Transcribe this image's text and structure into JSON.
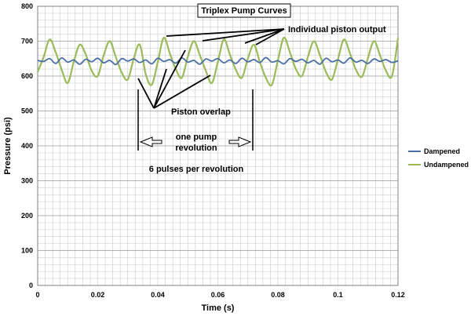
{
  "chart_data": {
    "type": "line",
    "title": "Triplex Pump Curves",
    "xlabel": "Time (s)",
    "ylabel": "Pressure (psi)",
    "xlim": [
      0,
      0.12
    ],
    "ylim": [
      0,
      800
    ],
    "x_ticks": [
      "0",
      "0.02",
      "0.04",
      "0.06",
      "0.08",
      "0.1",
      "0.12"
    ],
    "y_ticks": [
      "0",
      "100",
      "200",
      "300",
      "400",
      "500",
      "600",
      "700",
      "800"
    ],
    "grid": true,
    "legend_position": "right",
    "series": [
      {
        "name": "Dampened",
        "color": "#4a6fa5",
        "x": [
          0,
          0.002,
          0.004,
          0.006,
          0.008,
          0.01,
          0.012,
          0.014,
          0.016,
          0.018,
          0.02,
          0.022,
          0.024,
          0.026,
          0.028,
          0.03,
          0.032,
          0.034,
          0.036,
          0.038,
          0.04,
          0.042,
          0.044,
          0.046,
          0.048,
          0.05,
          0.052,
          0.054,
          0.056,
          0.058,
          0.06,
          0.062,
          0.064,
          0.066,
          0.068,
          0.07,
          0.072,
          0.074,
          0.076,
          0.078,
          0.08,
          0.082,
          0.084,
          0.086,
          0.088,
          0.09,
          0.092,
          0.094,
          0.096,
          0.098,
          0.1,
          0.102,
          0.104,
          0.106,
          0.108,
          0.11,
          0.112,
          0.114,
          0.116,
          0.118,
          0.12
        ],
        "values": [
          645,
          642,
          650,
          636,
          652,
          640,
          646,
          634,
          648,
          641,
          651,
          638,
          645,
          633,
          650,
          643,
          649,
          639,
          646,
          635,
          651,
          642,
          647,
          637,
          652,
          640,
          645,
          634,
          649,
          643,
          650,
          638,
          646,
          636,
          651,
          641,
          647,
          639,
          653,
          640,
          644,
          635,
          650,
          642,
          648,
          638,
          645,
          634,
          651,
          641,
          646,
          637,
          652,
          640,
          645,
          636,
          649,
          642,
          647,
          639,
          644
        ]
      },
      {
        "name": "Undampened",
        "color": "#9bbb59",
        "x": [
          0,
          0.002,
          0.004,
          0.006,
          0.008,
          0.01,
          0.012,
          0.014,
          0.016,
          0.018,
          0.02,
          0.022,
          0.024,
          0.026,
          0.028,
          0.03,
          0.032,
          0.034,
          0.036,
          0.038,
          0.04,
          0.042,
          0.044,
          0.046,
          0.048,
          0.05,
          0.052,
          0.054,
          0.056,
          0.058,
          0.06,
          0.062,
          0.064,
          0.066,
          0.068,
          0.07,
          0.072,
          0.074,
          0.076,
          0.078,
          0.08,
          0.082,
          0.084,
          0.086,
          0.088,
          0.09,
          0.092,
          0.094,
          0.096,
          0.098,
          0.1,
          0.102,
          0.104,
          0.106,
          0.108,
          0.11,
          0.112,
          0.114,
          0.116,
          0.118,
          0.12
        ],
        "values": [
          612,
          655,
          705,
          668,
          618,
          580,
          640,
          690,
          662,
          615,
          600,
          660,
          700,
          655,
          610,
          590,
          650,
          690,
          605,
          575,
          640,
          710,
          665,
          620,
          595,
          655,
          700,
          660,
          615,
          580,
          640,
          705,
          662,
          618,
          595,
          650,
          690,
          640,
          595,
          575,
          645,
          710,
          668,
          620,
          600,
          655,
          700,
          660,
          612,
          590,
          648,
          705,
          665,
          618,
          598,
          652,
          700,
          660,
          615,
          600,
          708
        ]
      }
    ],
    "annotations": [
      "Individual piston output",
      "Piston overlap",
      "one pump",
      "revolution",
      "6 pulses per revolution"
    ]
  }
}
